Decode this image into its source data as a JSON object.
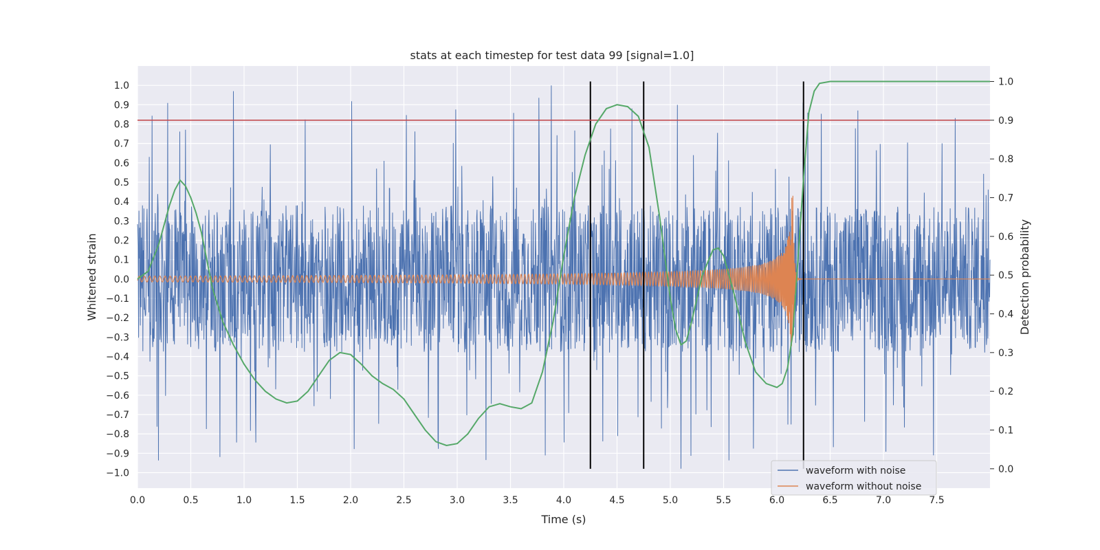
{
  "chart_data": {
    "type": "line",
    "title": "stats at each timestep for test data 99 [signal=1.0]",
    "xlabel": "Time (s)",
    "ylabel_left": "Whitened strain",
    "ylabel_right": "Detection probability",
    "xlim": [
      0.0,
      8.0
    ],
    "ylim_left": [
      -1.08,
      1.1
    ],
    "ylim_right": [
      -0.05,
      1.04
    ],
    "x_ticks": [
      "0.0",
      "0.5",
      "1.0",
      "1.5",
      "2.0",
      "2.5",
      "3.0",
      "3.5",
      "4.0",
      "4.5",
      "5.0",
      "5.5",
      "6.0",
      "6.5",
      "7.0",
      "7.5"
    ],
    "y_left_ticks": [
      "1.0",
      "0.9",
      "0.8",
      "0.7",
      "0.6",
      "0.5",
      "0.4",
      "0.3",
      "0.2",
      "0.1",
      "0.0",
      "−0.1",
      "−0.2",
      "−0.3",
      "−0.4",
      "−0.5",
      "−0.6",
      "−0.7",
      "−0.8",
      "−0.9",
      "−1.0"
    ],
    "y_right_ticks": [
      "1.0",
      "0.9",
      "0.8",
      "0.7",
      "0.6",
      "0.5",
      "0.4",
      "0.3",
      "0.2",
      "0.1",
      "0.0"
    ],
    "grid": true,
    "background": "#eaeaf2",
    "legend_position": "bottom-right",
    "threshold": {
      "value_right": 0.9,
      "color": "#c44e52"
    },
    "vertical_markers": {
      "times": [
        4.25,
        4.75,
        6.25
      ],
      "color": "#000000"
    },
    "series": [
      {
        "name": "waveform with noise",
        "axis": "left",
        "color": "#4c72b0",
        "amplitude_band": [
          -0.38,
          0.38
        ],
        "peak_max": 1.0,
        "peak_min": -0.98
      },
      {
        "name": "waveform without noise",
        "axis": "left",
        "color": "#dd8452",
        "chirp_start_amp": 0.015,
        "peak_amp": 0.43,
        "merger_time": 6.15,
        "ringdown_end": 6.2
      },
      {
        "axis": "right",
        "color": "#55a868",
        "x": [
          0.0,
          0.1,
          0.2,
          0.3,
          0.35,
          0.4,
          0.45,
          0.5,
          0.55,
          0.6,
          0.7,
          0.8,
          0.9,
          1.0,
          1.1,
          1.2,
          1.3,
          1.4,
          1.5,
          1.6,
          1.7,
          1.8,
          1.9,
          2.0,
          2.1,
          2.2,
          2.3,
          2.4,
          2.5,
          2.6,
          2.7,
          2.8,
          2.9,
          3.0,
          3.1,
          3.2,
          3.3,
          3.4,
          3.5,
          3.6,
          3.7,
          3.8,
          3.9,
          4.0,
          4.1,
          4.2,
          4.3,
          4.4,
          4.5,
          4.6,
          4.7,
          4.8,
          4.9,
          5.0,
          5.05,
          5.1,
          5.15,
          5.2,
          5.3,
          5.4,
          5.45,
          5.5,
          5.6,
          5.7,
          5.8,
          5.9,
          6.0,
          6.05,
          6.1,
          6.15,
          6.2,
          6.25,
          6.3,
          6.35,
          6.4,
          6.5,
          7.0,
          7.5,
          8.0
        ],
        "values": [
          0.49,
          0.51,
          0.58,
          0.68,
          0.72,
          0.745,
          0.73,
          0.7,
          0.66,
          0.61,
          0.47,
          0.38,
          0.32,
          0.27,
          0.23,
          0.2,
          0.18,
          0.17,
          0.175,
          0.2,
          0.24,
          0.28,
          0.3,
          0.295,
          0.27,
          0.24,
          0.22,
          0.205,
          0.18,
          0.14,
          0.1,
          0.07,
          0.06,
          0.065,
          0.09,
          0.13,
          0.16,
          0.168,
          0.16,
          0.155,
          0.17,
          0.25,
          0.38,
          0.55,
          0.7,
          0.81,
          0.89,
          0.93,
          0.94,
          0.935,
          0.91,
          0.83,
          0.65,
          0.44,
          0.36,
          0.32,
          0.33,
          0.38,
          0.5,
          0.565,
          0.57,
          0.55,
          0.45,
          0.33,
          0.25,
          0.22,
          0.21,
          0.22,
          0.26,
          0.35,
          0.55,
          0.75,
          0.92,
          0.975,
          0.995,
          1.0,
          1.0,
          1.0,
          1.0
        ]
      }
    ]
  }
}
